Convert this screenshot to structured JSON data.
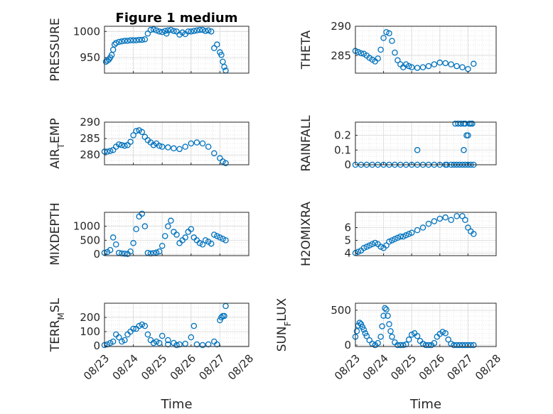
{
  "figure_title": "Figure 1 medium",
  "marker_color": "#0072BD",
  "grid_color": "#DFDFDF",
  "axes_color": "#262626",
  "chart_data": [
    {
      "type": "scatter",
      "ylabel": "PRESSURE",
      "xlabel": "",
      "title": "Figure 1 medium",
      "xlim": [
        0,
        5
      ],
      "ylim": [
        920,
        1010
      ],
      "yticks": [
        950,
        1000
      ],
      "ytick_labels": [
        "950",
        "1000"
      ],
      "xtick_labels": [],
      "grid": true,
      "minor_grid": true,
      "legend": "none",
      "x": [
        0.05,
        0.1,
        0.15,
        0.2,
        0.25,
        0.3,
        0.35,
        0.4,
        0.5,
        0.6,
        0.7,
        0.8,
        0.9,
        1.0,
        1.1,
        1.2,
        1.3,
        1.4,
        1.5,
        1.6,
        1.7,
        1.8,
        1.9,
        2.0,
        2.1,
        2.15,
        2.2,
        2.3,
        2.4,
        2.5,
        2.6,
        2.7,
        2.8,
        2.9,
        3.0,
        3.1,
        3.2,
        3.3,
        3.4,
        3.5,
        3.6,
        3.7,
        3.8,
        3.9,
        4.0,
        4.05,
        4.1,
        4.15,
        4.2
      ],
      "y": [
        942,
        944,
        946,
        950,
        955,
        965,
        975,
        978,
        980,
        981,
        982,
        982,
        983,
        983,
        983,
        984,
        984,
        985,
        996,
        1003,
        1004,
        1002,
        1000,
        999,
        1001,
        996,
        1002,
        1003,
        1001,
        1000,
        994,
        998,
        995,
        1000,
        1000,
        1001,
        1002,
        1003,
        1003,
        1001,
        1002,
        1000,
        968,
        975,
        960,
        955,
        942,
        932,
        925
      ]
    },
    {
      "type": "scatter",
      "ylabel": "THETA",
      "xlabel": "",
      "xlim": [
        0,
        5
      ],
      "ylim": [
        282,
        290
      ],
      "yticks": [
        285,
        290
      ],
      "ytick_labels": [
        "285",
        "290"
      ],
      "xtick_labels": [],
      "grid": true,
      "minor_grid": true,
      "legend": "none",
      "x": [
        0.0,
        0.1,
        0.2,
        0.3,
        0.4,
        0.5,
        0.6,
        0.7,
        0.8,
        0.9,
        1.0,
        1.1,
        1.2,
        1.3,
        1.4,
        1.5,
        1.6,
        1.7,
        1.8,
        1.9,
        2.0,
        2.2,
        2.4,
        2.6,
        2.8,
        3.0,
        3.2,
        3.4,
        3.6,
        3.8,
        4.0,
        4.2
      ],
      "y": [
        285.8,
        285.6,
        285.4,
        285.3,
        285.0,
        284.6,
        284.3,
        284.0,
        284.5,
        286.0,
        288.0,
        289.0,
        288.8,
        287.5,
        285.5,
        284.2,
        283.5,
        283.0,
        283.5,
        283.2,
        283.0,
        282.9,
        283.0,
        283.2,
        283.5,
        283.8,
        283.7,
        283.5,
        283.2,
        283.0,
        282.7,
        283.6
      ]
    },
    {
      "type": "scatter",
      "ylabel": "AIR_TEMP",
      "xlabel": "",
      "xlim": [
        0,
        5
      ],
      "ylim": [
        277,
        290
      ],
      "yticks": [
        280,
        285,
        290
      ],
      "ytick_labels": [
        "280",
        "285",
        "290"
      ],
      "xtick_labels": [],
      "grid": true,
      "minor_grid": true,
      "legend": "none",
      "x": [
        0.0,
        0.1,
        0.2,
        0.3,
        0.4,
        0.5,
        0.6,
        0.7,
        0.8,
        0.9,
        1.0,
        1.1,
        1.2,
        1.3,
        1.4,
        1.5,
        1.6,
        1.7,
        1.8,
        1.9,
        2.0,
        2.2,
        2.4,
        2.6,
        2.8,
        3.0,
        3.2,
        3.4,
        3.6,
        3.8,
        4.0,
        4.1,
        4.2
      ],
      "y": [
        281.0,
        281.0,
        281.2,
        281.5,
        282.5,
        283.2,
        283.0,
        282.8,
        283.0,
        284.0,
        286.0,
        287.3,
        287.5,
        287.0,
        285.5,
        284.5,
        283.8,
        283.0,
        283.5,
        282.8,
        282.5,
        282.3,
        282.0,
        281.8,
        282.5,
        283.5,
        283.8,
        283.5,
        282.5,
        280.5,
        279.0,
        278.0,
        277.5
      ]
    },
    {
      "type": "scatter",
      "ylabel": "RAINFALL",
      "xlabel": "",
      "xlim": [
        0,
        5
      ],
      "ylim": [
        0,
        0.29
      ],
      "yticks": [
        0,
        0.1,
        0.2
      ],
      "ytick_labels": [
        "0",
        "0.1",
        "0.2"
      ],
      "xtick_labels": [],
      "grid": true,
      "minor_grid": true,
      "legend": "none",
      "x": [
        0.0,
        0.2,
        0.4,
        0.6,
        0.8,
        1.0,
        1.2,
        1.4,
        1.6,
        1.8,
        2.0,
        2.2,
        2.4,
        2.6,
        2.8,
        3.0,
        3.2,
        3.4,
        3.5,
        3.6,
        3.7,
        3.8,
        3.9,
        4.0,
        4.1,
        4.2,
        3.25,
        3.55,
        3.65,
        3.75,
        3.85,
        3.9,
        3.95,
        4.0,
        4.05,
        4.1,
        4.15,
        2.2,
        3.85
      ],
      "y": [
        0,
        0,
        0,
        0,
        0,
        0,
        0,
        0,
        0,
        0,
        0,
        0,
        0,
        0,
        0,
        0,
        0,
        0,
        0,
        0,
        0,
        0,
        0,
        0,
        0,
        0,
        0,
        0.28,
        0.28,
        0.28,
        0.28,
        0.28,
        0.2,
        0.2,
        0.28,
        0.28,
        0.28,
        0.1,
        0.1
      ]
    },
    {
      "type": "scatter",
      "ylabel": "MIXDEPTH",
      "xlabel": "",
      "xlim": [
        0,
        5
      ],
      "ylim": [
        -50,
        1500
      ],
      "yticks": [
        0,
        500,
        1000
      ],
      "ytick_labels": [
        "0",
        "500",
        "1000"
      ],
      "xtick_labels": [],
      "grid": true,
      "minor_grid": true,
      "legend": "none",
      "x": [
        0.0,
        0.1,
        0.2,
        0.3,
        0.4,
        0.5,
        0.6,
        0.7,
        0.8,
        0.9,
        1.0,
        1.1,
        1.2,
        1.3,
        1.4,
        1.5,
        1.6,
        1.7,
        1.8,
        1.9,
        2.0,
        2.1,
        2.2,
        2.3,
        2.4,
        2.5,
        2.6,
        2.7,
        2.8,
        2.9,
        3.0,
        3.1,
        3.2,
        3.3,
        3.4,
        3.5,
        3.6,
        3.7,
        3.8,
        3.9,
        4.0,
        4.1,
        4.2
      ],
      "y": [
        50,
        80,
        150,
        600,
        350,
        50,
        30,
        20,
        10,
        100,
        400,
        900,
        1350,
        1450,
        1000,
        50,
        30,
        40,
        60,
        100,
        300,
        650,
        1000,
        1200,
        800,
        700,
        400,
        500,
        600,
        800,
        900,
        600,
        500,
        400,
        350,
        500,
        450,
        380,
        700,
        650,
        600,
        550,
        500
      ]
    },
    {
      "type": "scatter",
      "ylabel": "H2OMIXRA",
      "xlabel": "",
      "xlim": [
        0,
        5
      ],
      "ylim": [
        3.8,
        7.2
      ],
      "yticks": [
        4,
        5,
        6
      ],
      "ytick_labels": [
        "4",
        "5",
        "6"
      ],
      "xtick_labels": [],
      "grid": true,
      "minor_grid": true,
      "legend": "none",
      "x": [
        0.0,
        0.1,
        0.2,
        0.3,
        0.4,
        0.5,
        0.6,
        0.7,
        0.8,
        0.9,
        1.0,
        1.1,
        1.2,
        1.3,
        1.4,
        1.5,
        1.6,
        1.7,
        1.8,
        1.9,
        2.0,
        2.2,
        2.4,
        2.6,
        2.8,
        3.0,
        3.2,
        3.4,
        3.6,
        3.8,
        3.9,
        4.0,
        4.1,
        4.2
      ],
      "y": [
        4.0,
        4.1,
        4.2,
        4.4,
        4.5,
        4.6,
        4.7,
        4.8,
        4.7,
        4.5,
        4.4,
        4.6,
        4.9,
        5.0,
        5.1,
        5.2,
        5.3,
        5.3,
        5.4,
        5.5,
        5.6,
        5.8,
        6.0,
        6.3,
        6.5,
        6.7,
        6.8,
        6.6,
        6.9,
        6.9,
        6.6,
        6.0,
        5.7,
        5.5
      ]
    },
    {
      "type": "scatter",
      "ylabel": "TERR_MSL",
      "xlabel": "Time",
      "xlim": [
        0,
        5
      ],
      "ylim": [
        -5,
        300
      ],
      "yticks": [
        0,
        100,
        200
      ],
      "ytick_labels": [
        "0",
        "100",
        "200"
      ],
      "xtick_labels": [
        "08/23",
        "08/24",
        "08/25",
        "08/26",
        "08/27",
        "08/28"
      ],
      "grid": true,
      "minor_grid": true,
      "legend": "none",
      "x": [
        0.0,
        0.1,
        0.2,
        0.3,
        0.4,
        0.5,
        0.6,
        0.7,
        0.8,
        0.9,
        1.0,
        1.1,
        1.2,
        1.3,
        1.4,
        1.5,
        1.6,
        1.7,
        1.8,
        1.9,
        2.0,
        2.2,
        2.4,
        2.6,
        2.8,
        3.0,
        3.2,
        3.4,
        3.6,
        3.8,
        3.9,
        4.0,
        4.05,
        4.1,
        4.15,
        4.2,
        3.1,
        2.2,
        2.5
      ],
      "y": [
        5,
        10,
        20,
        30,
        80,
        60,
        30,
        40,
        80,
        100,
        120,
        120,
        140,
        150,
        140,
        80,
        40,
        20,
        30,
        20,
        70,
        40,
        20,
        10,
        15,
        60,
        10,
        5,
        10,
        30,
        10,
        180,
        200,
        210,
        210,
        280,
        140,
        10,
        5
      ]
    },
    {
      "type": "scatter",
      "ylabel": "SUN_FLUX",
      "xlabel": "Time",
      "xlim": [
        0,
        5
      ],
      "ylim": [
        -20,
        600
      ],
      "yticks": [
        0,
        500
      ],
      "ytick_labels": [
        "0",
        "500"
      ],
      "xtick_labels": [
        "08/23",
        "08/24",
        "08/25",
        "08/26",
        "08/27",
        "08/28"
      ],
      "grid": true,
      "minor_grid": true,
      "legend": "none",
      "x": [
        0.0,
        0.05,
        0.1,
        0.15,
        0.2,
        0.25,
        0.3,
        0.35,
        0.4,
        0.5,
        0.6,
        0.7,
        0.8,
        0.9,
        0.95,
        1.0,
        1.05,
        1.1,
        1.15,
        1.2,
        1.25,
        1.3,
        1.4,
        1.5,
        1.6,
        1.7,
        1.8,
        1.9,
        2.0,
        2.1,
        2.2,
        2.3,
        2.4,
        2.5,
        2.6,
        2.7,
        2.8,
        2.9,
        3.0,
        3.1,
        3.2,
        3.3,
        3.4,
        3.5,
        3.6,
        3.7,
        3.8,
        3.9,
        4.0,
        4.1,
        4.2
      ],
      "y": [
        120,
        200,
        280,
        320,
        300,
        260,
        220,
        170,
        130,
        70,
        20,
        0,
        30,
        120,
        270,
        420,
        530,
        510,
        420,
        300,
        200,
        120,
        40,
        0,
        0,
        0,
        10,
        80,
        150,
        170,
        130,
        60,
        20,
        0,
        0,
        0,
        30,
        120,
        160,
        190,
        170,
        80,
        20,
        0,
        0,
        0,
        0,
        0,
        0,
        0,
        0
      ]
    }
  ]
}
